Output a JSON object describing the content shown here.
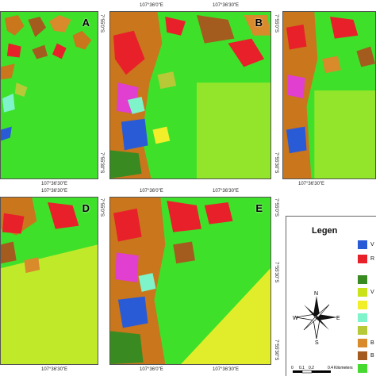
{
  "panels": [
    {
      "id": "A",
      "letter": "A",
      "top_label": "",
      "bottom_label": "107°36'30\"E",
      "side_labels": [
        "7°55'0\"S",
        "7°55'30\"S"
      ]
    },
    {
      "id": "B",
      "letter": "B",
      "top_label": "107°36'0\"E",
      "top_label2": "107°36'30\"E",
      "bottom_label": "",
      "side_labels": [
        "7°55'0\"S",
        "7°55'30\"S"
      ]
    },
    {
      "id": "C",
      "letter": "",
      "top_label": "",
      "bottom_label": "107°36'30\"E",
      "side_labels": [
        "7°55'0\"S",
        "7°55'30\"S"
      ]
    },
    {
      "id": "D",
      "letter": "D",
      "top_label": "107°36'30\"E",
      "bottom_label": "107°36'30\"E",
      "side_labels": [
        "7°55'0\"S"
      ]
    },
    {
      "id": "E",
      "letter": "E",
      "top_label": "107°36'0\"E",
      "top_label2": "107°36'30\"E",
      "bottom_label": "107°36'0\"E",
      "bottom_label2": "107°36'30\"E",
      "side_labels": [
        "7°55'0\"S",
        "7°55'30\"S",
        "7°55'30\"S"
      ]
    }
  ],
  "legend": {
    "title": "Legen",
    "swatches": [
      {
        "color": "#2a5bd7",
        "label": "V"
      },
      {
        "color": "#e8202a",
        "label": "R"
      },
      {
        "color": "#3a8a22",
        "label": ""
      },
      {
        "color": "#c9e21a",
        "label": "V"
      },
      {
        "color": "#f3ee2a",
        "label": ""
      },
      {
        "color": "#7ff3c9",
        "label": ""
      },
      {
        "color": "#b7c936",
        "label": ""
      },
      {
        "color": "#d98a2b",
        "label": "B"
      },
      {
        "color": "#a35c1e",
        "label": "B"
      },
      {
        "color": "#46d930",
        "label": ""
      }
    ]
  },
  "compass": {
    "n": "N",
    "s": "S",
    "e": "E",
    "w": "W"
  },
  "scale": {
    "ticks": [
      "0",
      "0.1",
      "0.2",
      "0.4"
    ],
    "unit": "Kilometers"
  },
  "colors": {
    "vegetation": "#3ee02a",
    "urban": "#e8202a",
    "water": "#2a5bd7",
    "bare": "#a35c1e",
    "shrub": "#f3ee2a"
  }
}
